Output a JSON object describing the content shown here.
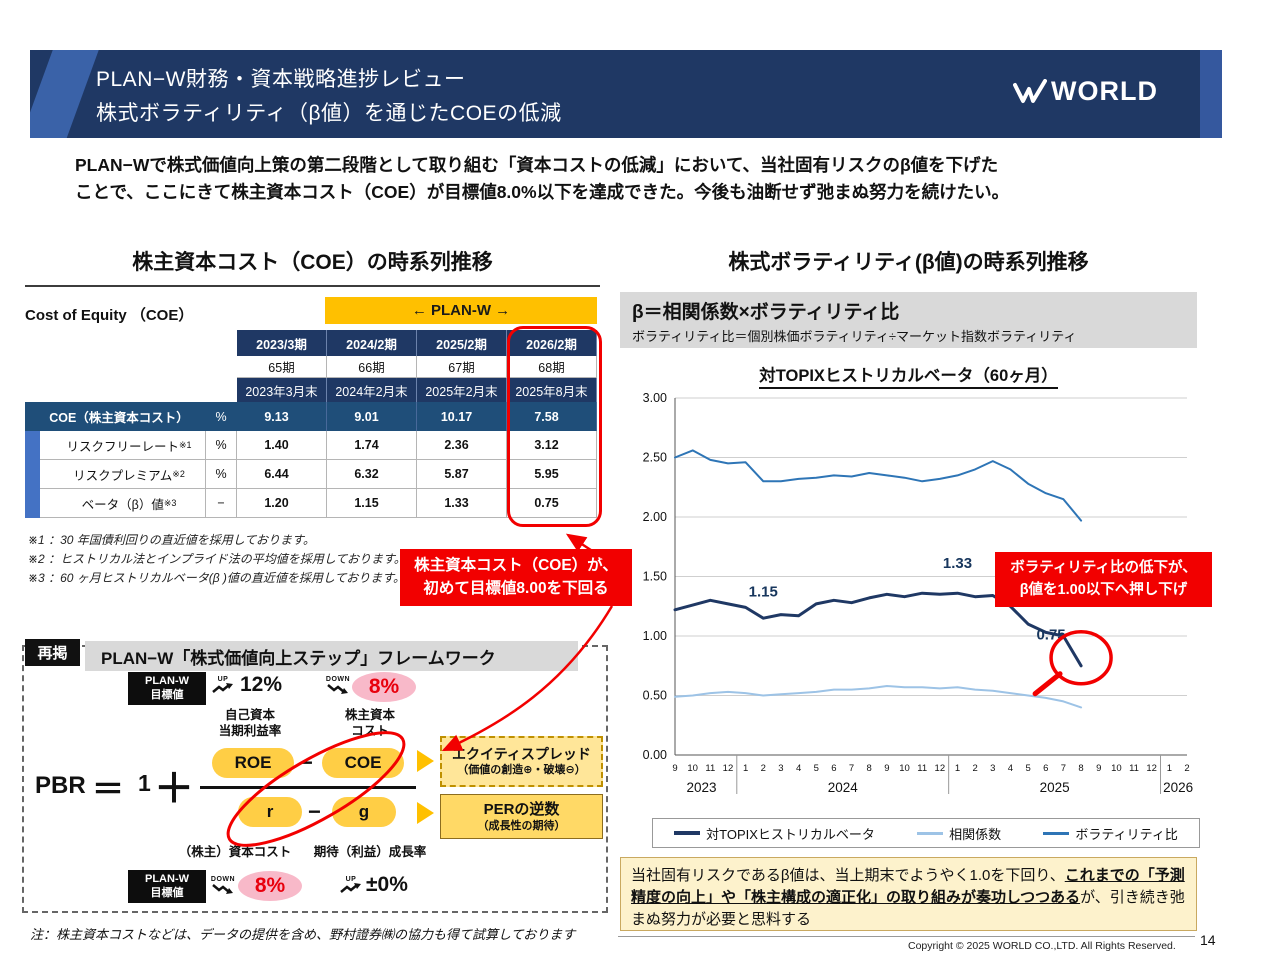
{
  "header": {
    "title_line1": "PLAN−W財務・資本戦略進捗レビュー",
    "title_line2": "株式ボラティリティ（β値）を通じたCOEの低減",
    "logo_text": "WORLD"
  },
  "intro": {
    "line1": "PLAN−Wで株式価値向上策の第二段階として取り組む「資本コストの低減」において、当社固有リスクのβ値を下げた",
    "line2": "ことで、ここにきて株主資本コスト（COE）が目標値8.0%以下を達成できた。今後も油断せず弛まぬ努力を続けたい。"
  },
  "left": {
    "section_title": "株主資本コスト（COE）の時系列推移",
    "coe_label": "Cost of Equity （COE）",
    "planw_banner": "← PLAN-W →",
    "table": {
      "periods": [
        {
          "name": "2023/3期",
          "ki": "65期",
          "date": "2023年3月末"
        },
        {
          "name": "2024/2期",
          "ki": "66期",
          "date": "2024年2月末"
        },
        {
          "name": "2025/2期",
          "ki": "67期",
          "date": "2025年2月末"
        },
        {
          "name": "2026/2期",
          "ki": "68期",
          "date": "2025年8月末"
        }
      ],
      "rows": [
        {
          "label": "COE（株主資本コスト）",
          "sup": "",
          "unit": "%",
          "values": [
            "9.13",
            "9.01",
            "10.17",
            "7.58"
          ]
        },
        {
          "label": "リスクフリーレート",
          "sup": "※1",
          "unit": "%",
          "values": [
            "1.40",
            "1.74",
            "2.36",
            "3.12"
          ]
        },
        {
          "label": "リスクプレミアム",
          "sup": "※2",
          "unit": "%",
          "values": [
            "6.44",
            "6.32",
            "5.87",
            "5.95"
          ]
        },
        {
          "label": "ベータ（β）値",
          "sup": "※3",
          "unit": "−",
          "values": [
            "1.20",
            "1.15",
            "1.33",
            "0.75"
          ]
        }
      ]
    },
    "footnotes": [
      "※1 ：30 年国債利回りの直近値を採用しております。",
      "※2 ：ヒストリカル法とインプライド法の平均値を採用しております。",
      "※3 ：60 ヶ月ヒストリカルベータ(β )値の直近値を採用しております。"
    ],
    "callout": {
      "line1": "株主資本コスト（COE）が、",
      "line2": "初めて目標値8.00を下回る"
    },
    "framework": {
      "tag": "再掲",
      "title": "PLAN−W「株式価値向上ステップ」フレームワーク",
      "target_line1": "PLAN-W",
      "target_line2": "目標値",
      "up_label": "UP",
      "down_label": "DOWN",
      "roe_target": "12%",
      "coe_target": "8%",
      "roe_caption_l1": "自己資本",
      "roe_caption_l2": "当期利益率",
      "coe_caption_l1": "株主資本",
      "coe_caption_l2": "コスト",
      "pbr": "PBR",
      "equals": "＝",
      "one": "1",
      "plus": "＋",
      "roe": "ROE",
      "minus1": "−",
      "coe": "COE",
      "r": "r",
      "minus2": "−",
      "g": "g",
      "equity_spread_title": "エクイティスプレッド",
      "equity_spread_sub": "（価値の創造⊕・破壊⊖）",
      "per_title": "PERの逆数",
      "per_sub": "（成長性の期待）",
      "capital_cost_caption": "（株主）資本コスト",
      "growth_caption": "期待（利益）成長率",
      "bottom_coe_target": "8%",
      "bottom_growth_target": "±0%"
    },
    "note": "注：株主資本コストなどは、データの提供を含め、野村證券㈱の協力も得て試算しております"
  },
  "right": {
    "section_title": "株式ボラティリティ(β値)の時系列推移",
    "formula_line1": "β＝相関係数×ボラティリティ比",
    "formula_line2": "ボラティリティ比＝個別株価ボラティリティ÷マーケット指数ボラティリティ",
    "callout": {
      "line1": "ボラティリティ比の低下が、",
      "line2": "β値を1.00以下へ押し下げ"
    },
    "summary": {
      "part1": "当社固有リスクであるβ値は、当上期末でようやく1.0を下回り、",
      "part2": "これまでの「予測精度の向上」や「株主構成の適正化」の取り組みが奏功しつつある",
      "part3": "が、引き続き弛まぬ努力が必要と思料する"
    }
  },
  "chart_data": {
    "type": "line",
    "title": "対TOPIXヒストリカルベータ（60ヶ月）",
    "ylim": [
      0,
      3.0
    ],
    "ytick_step": 0.5,
    "grid": true,
    "legend_position": "bottom",
    "x_months": [
      "9",
      "10",
      "11",
      "12",
      "1",
      "2",
      "3",
      "4",
      "5",
      "6",
      "7",
      "8",
      "9",
      "10",
      "11",
      "12",
      "1",
      "2",
      "3",
      "4",
      "5",
      "6",
      "7",
      "8",
      "9",
      "10",
      "11",
      "12",
      "1",
      "2"
    ],
    "year_groups": [
      {
        "label": "2023",
        "start": 0,
        "end": 3
      },
      {
        "label": "2024",
        "start": 4,
        "end": 15
      },
      {
        "label": "2025",
        "start": 16,
        "end": 27
      },
      {
        "label": "2026",
        "start": 28,
        "end": 29
      }
    ],
    "series": [
      {
        "name": "対TOPIXヒストリカルベータ",
        "color": "#1f3864",
        "width": 3,
        "values": [
          1.22,
          1.26,
          1.3,
          1.27,
          1.24,
          1.15,
          1.18,
          1.17,
          1.27,
          1.3,
          1.28,
          1.32,
          1.35,
          1.33,
          1.36,
          1.35,
          1.36,
          1.33,
          1.34,
          1.25,
          1.1,
          1.03,
          1.0,
          0.75
        ]
      },
      {
        "name": "相関係数",
        "color": "#9dc3e6",
        "width": 2,
        "values": [
          0.49,
          0.5,
          0.52,
          0.53,
          0.52,
          0.5,
          0.51,
          0.52,
          0.53,
          0.55,
          0.55,
          0.56,
          0.58,
          0.57,
          0.57,
          0.56,
          0.57,
          0.55,
          0.54,
          0.52,
          0.5,
          0.48,
          0.45,
          0.4
        ]
      },
      {
        "name": "ボラティリティ比",
        "color": "#2e75b6",
        "width": 2,
        "values": [
          2.5,
          2.56,
          2.48,
          2.45,
          2.46,
          2.3,
          2.3,
          2.32,
          2.33,
          2.35,
          2.34,
          2.37,
          2.35,
          2.33,
          2.3,
          2.32,
          2.35,
          2.4,
          2.47,
          2.4,
          2.28,
          2.2,
          2.15,
          1.97
        ]
      }
    ],
    "annotations": [
      {
        "text": "1.15",
        "index": 5,
        "value": 1.33
      },
      {
        "text": "1.33",
        "index": 16,
        "value": 1.57
      },
      {
        "text": "0.75",
        "index": 21.3,
        "value": 0.97
      }
    ],
    "highlight_point": {
      "series": 0,
      "index": 23
    }
  },
  "footer": {
    "copyright": "Copyright © 2025 WORLD CO.,LTD. All Rights Reserved.",
    "page": "14"
  }
}
